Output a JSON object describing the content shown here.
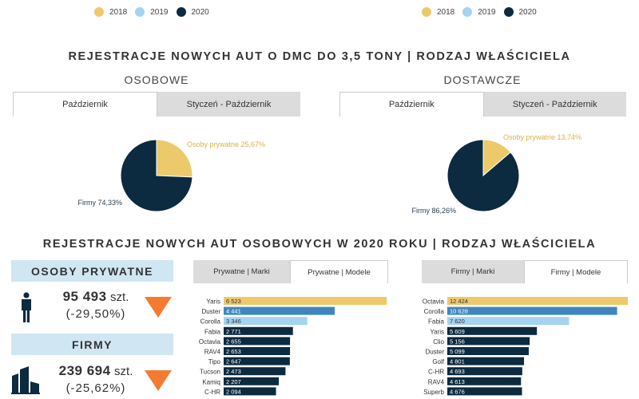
{
  "legend": {
    "items": [
      {
        "label": "2018",
        "color": "#ecc96a"
      },
      {
        "label": "2019",
        "color": "#a5d3f0"
      },
      {
        "label": "2020",
        "color": "#0c2a40"
      }
    ]
  },
  "section1": {
    "title": "REJESTRACJE NOWYCH AUT O DMC DO 3,5 TONY | RODZAJ WŁAŚCICIELA",
    "left": {
      "subtitle": "OSOBOWE",
      "tabs": [
        "Październik",
        "Styczeń - Październik"
      ]
    },
    "right": {
      "subtitle": "DOSTAWCZE",
      "tabs": [
        "Październik",
        "Styczeń - Październik"
      ]
    }
  },
  "section2": {
    "title": "REJESTRACJE NOWYCH AUT OSOBOWYCH W 2020 ROKU | RODZAJ WŁAŚCICIELA",
    "private": {
      "heading": "OSOBY PRYWATNE",
      "value": "95 493",
      "unit": "szt.",
      "change": "(-29,50%)"
    },
    "firms": {
      "heading": "FIRMY",
      "value": "239 694",
      "unit": "szt.",
      "change": "(-25,62%)"
    },
    "tabs_left": [
      "Prywatne | Marki",
      "Prywatne | Modele"
    ],
    "tabs_right": [
      "Firmy | Marki",
      "Firmy | Modele"
    ]
  },
  "colors": {
    "gold": "#ecc96a",
    "lightblue": "#a5d3f0",
    "blue": "#3f86bf",
    "navy": "#0c2a40",
    "accent_down": "#f47a32"
  },
  "chart_data": [
    {
      "type": "pie",
      "slices": [
        {
          "label": "Osoby prywatne 25,67%",
          "value": 25.67,
          "color": "#ecc96a"
        },
        {
          "label": "Firmy 74,33%",
          "value": 74.33,
          "color": "#0c2a40"
        }
      ]
    },
    {
      "type": "pie",
      "slices": [
        {
          "label": "Osoby prywatne 13,74%",
          "value": 13.74,
          "color": "#ecc96a"
        },
        {
          "label": "Firmy 86,26%",
          "value": 86.26,
          "color": "#0c2a40"
        }
      ]
    },
    {
      "type": "bar",
      "orientation": "horizontal",
      "categories": [
        "Yaris",
        "Duster",
        "Corolla",
        "Fabia",
        "Octavia",
        "RAV4",
        "Tipo",
        "Tucson",
        "Kamiq",
        "C-HR"
      ],
      "values": [
        6523,
        4441,
        3346,
        2771,
        2655,
        2653,
        2647,
        2473,
        2207,
        2094
      ],
      "labels": [
        "6 523",
        "4 441",
        "3 346",
        "2 771",
        "2 655",
        "2 653",
        "2 647",
        "2 473",
        "2 207",
        "2 094"
      ],
      "colors": [
        "#ecc96a",
        "#3f86bf",
        "#a5d3f0",
        "#0c2a40",
        "#0c2a40",
        "#0c2a40",
        "#0c2a40",
        "#0c2a40",
        "#0c2a40",
        "#0c2a40"
      ],
      "xlim": [
        0,
        6900
      ]
    },
    {
      "type": "bar",
      "orientation": "horizontal",
      "categories": [
        "Octavia",
        "Corolla",
        "Fabia",
        "Yaris",
        "Clio",
        "Duster",
        "Golf",
        "C-HR",
        "RAV4",
        "Superb"
      ],
      "values": [
        12424,
        10628,
        7620,
        5609,
        5156,
        5099,
        4801,
        4693,
        4613,
        4676
      ],
      "labels": [
        "12 424",
        "10 628",
        "7 620",
        "5 609",
        "5 156",
        "5 099",
        "4 801",
        "4 693",
        "4 613",
        "4 676"
      ],
      "colors": [
        "#ecc96a",
        "#3f86bf",
        "#a5d3f0",
        "#0c2a40",
        "#0c2a40",
        "#0c2a40",
        "#0c2a40",
        "#0c2a40",
        "#0c2a40",
        "#0c2a40"
      ],
      "xlim": [
        0,
        12800
      ]
    }
  ]
}
